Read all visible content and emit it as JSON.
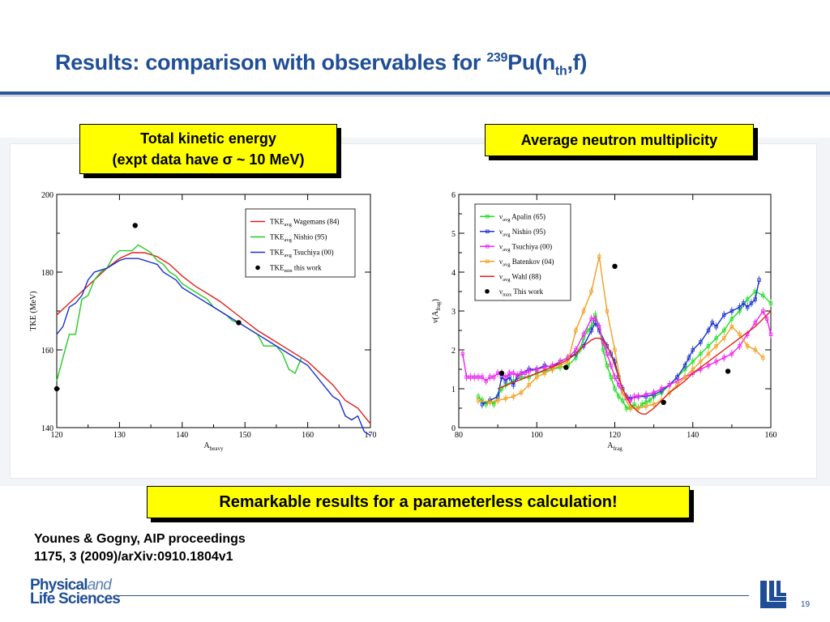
{
  "slide": {
    "title_main": "Results: comparison with observables for ",
    "title_sup": "239",
    "title_mid": "Pu(n",
    "title_sub": "th",
    "title_end": ",f)",
    "callout_left_line1": "Total kinetic energy",
    "callout_left_line2": "(expt data have σ ~ 10 MeV)",
    "callout_right": "Average neutron multiplicity",
    "callout_bottom": "Remarkable results for a parameterless calculation!",
    "reference_line1": "Younes & Gogny, AIP proceedings",
    "reference_line2": "1175, 3 (2009)/arXiv:0910.1804v1",
    "logo_physical": "Physical",
    "logo_and": "and",
    "logo_life": "Life Sciences",
    "page_number": "19",
    "accent_color": "#1f4e96",
    "callout_color": "#ffff00"
  },
  "chart_data": [
    {
      "type": "line",
      "xlabel": "A",
      "xlabel_sub": "heavy",
      "ylabel": "TKE (MeV)",
      "xlim": [
        120,
        170
      ],
      "ylim": [
        140,
        200
      ],
      "xticks": [
        120,
        130,
        140,
        150,
        160,
        170
      ],
      "yticks": [
        140,
        160,
        180,
        200
      ],
      "legend_position": "top-right",
      "series": [
        {
          "name": "TKE",
          "sub": "avg",
          "label": "Wagemans (84)",
          "color": "#e0201b",
          "style": "line",
          "x": [
            120,
            122,
            124,
            126,
            128,
            130,
            132,
            134,
            136,
            138,
            140,
            142,
            144,
            146,
            148,
            150,
            152,
            154,
            156,
            158,
            160,
            162,
            164,
            166,
            168,
            170
          ],
          "y": [
            169,
            172,
            175,
            178,
            181,
            183.5,
            185,
            185,
            184,
            182,
            179,
            176.5,
            174.5,
            172.5,
            170,
            167.5,
            165,
            163,
            161,
            159,
            157,
            154,
            151,
            147,
            145,
            141
          ]
        },
        {
          "name": "TKE",
          "sub": "avg",
          "label": "Nishio (95)",
          "color": "#22cc22",
          "style": "line",
          "x": [
            120,
            121,
            122,
            123,
            124,
            125,
            126,
            127,
            128,
            129,
            130,
            131,
            132,
            133,
            134,
            135,
            136,
            137,
            138,
            139,
            140,
            141,
            142,
            143,
            144,
            145,
            146,
            147,
            148,
            149,
            150,
            151,
            152,
            153,
            154,
            155,
            156,
            157,
            158,
            159
          ],
          "y": [
            152,
            158,
            164,
            164,
            173,
            174,
            178,
            180,
            181,
            184,
            185.5,
            185.5,
            185.5,
            187,
            186,
            185,
            183,
            182,
            180,
            179,
            177,
            176,
            175,
            174,
            173,
            171,
            170,
            169,
            167.5,
            167,
            166,
            165,
            164,
            161,
            161,
            161,
            159,
            155,
            154,
            158
          ]
        },
        {
          "name": "TKE",
          "sub": "avg",
          "label": "Tsuchiya (00)",
          "color": "#1a2fd0",
          "style": "line",
          "x": [
            120,
            121,
            122,
            123,
            124,
            125,
            126,
            127,
            128,
            129,
            130,
            131,
            132,
            133,
            134,
            135,
            136,
            137,
            138,
            139,
            140,
            142,
            144,
            146,
            148,
            150,
            152,
            154,
            156,
            158,
            160,
            162,
            164,
            165,
            166,
            167,
            168,
            169,
            170
          ],
          "y": [
            164,
            166,
            171,
            172,
            174,
            178,
            180,
            180.5,
            181,
            182,
            183,
            183.5,
            183.5,
            183.5,
            183,
            182.5,
            182,
            180,
            179,
            178,
            176,
            174,
            172,
            170,
            168,
            166,
            164,
            162,
            160,
            158,
            156,
            152,
            148,
            147,
            143,
            142,
            143,
            139,
            138
          ]
        },
        {
          "name": "TKE",
          "sub": "min",
          "label": "this work",
          "color": "#000000",
          "style": "dots",
          "x": [
            120,
            132.5,
            149
          ],
          "y": [
            150,
            192,
            167
          ]
        }
      ]
    },
    {
      "type": "line",
      "xlabel": "A",
      "xlabel_sub": "frag",
      "ylabel": "ν(A",
      "ylabel_sub": "frag",
      "ylabel_end": ")",
      "xlim": [
        80,
        160
      ],
      "ylim": [
        0,
        6
      ],
      "xticks": [
        80,
        100,
        120,
        140,
        160
      ],
      "yticks": [
        0,
        1,
        2,
        3,
        4,
        5,
        6
      ],
      "legend_position": "top-left",
      "series": [
        {
          "name": "ν",
          "sub": "avg",
          "label": "Apalin (65)",
          "color": "#22dd22",
          "style": "errline",
          "x": [
            85,
            86,
            87,
            88,
            89,
            90,
            91,
            92,
            94,
            96,
            98,
            100,
            102,
            104,
            106,
            108,
            110,
            111,
            112,
            113,
            114,
            115,
            116,
            117,
            118,
            119,
            120,
            121,
            122,
            123,
            124,
            125,
            126,
            127,
            128,
            129,
            130,
            132,
            134,
            136,
            138,
            140,
            142,
            144,
            146,
            148,
            150,
            152,
            154,
            156,
            158,
            160
          ],
          "y": [
            0.8,
            0.7,
            0.6,
            0.7,
            0.6,
            0.8,
            1.0,
            1.1,
            1.2,
            1.3,
            1.3,
            1.4,
            1.45,
            1.5,
            1.55,
            1.6,
            1.8,
            2.0,
            2.3,
            2.5,
            2.6,
            2.9,
            2.6,
            2.0,
            1.6,
            1.3,
            1.0,
            0.8,
            0.7,
            0.5,
            0.5,
            0.6,
            0.5,
            0.6,
            0.65,
            0.7,
            0.8,
            0.9,
            1.1,
            1.3,
            1.5,
            1.7,
            1.9,
            2.1,
            2.3,
            2.5,
            2.8,
            3.0,
            3.3,
            3.5,
            3.4,
            3.2
          ]
        },
        {
          "name": "ν",
          "sub": "avg",
          "label": "Nishio (95)",
          "color": "#1a2fd0",
          "style": "errline",
          "x": [
            86,
            88,
            90,
            91,
            92,
            93,
            94,
            95,
            96,
            98,
            100,
            102,
            104,
            106,
            108,
            110,
            112,
            114,
            115,
            116,
            118,
            119,
            120,
            121,
            122,
            123,
            124,
            126,
            128,
            130,
            132,
            134,
            136,
            138,
            139,
            140,
            142,
            144,
            145,
            146,
            148,
            150,
            152,
            153,
            154,
            155,
            156,
            157
          ],
          "y": [
            0.6,
            0.7,
            0.8,
            1.3,
            1.2,
            1.3,
            1.1,
            1.3,
            1.4,
            1.5,
            1.5,
            1.6,
            1.55,
            1.7,
            1.8,
            1.9,
            2.1,
            2.5,
            2.7,
            2.5,
            2.1,
            1.9,
            1.7,
            1.3,
            1.0,
            0.8,
            0.75,
            0.8,
            0.8,
            0.85,
            0.95,
            1.1,
            1.3,
            1.6,
            1.8,
            2.0,
            2.2,
            2.5,
            2.7,
            2.6,
            2.9,
            3.0,
            3.1,
            3.2,
            3.1,
            3.2,
            3.3,
            3.8
          ]
        },
        {
          "name": "ν",
          "sub": "avg",
          "label": "Tsuchiya (00)",
          "color": "#ee22ee",
          "style": "errline",
          "x": [
            81,
            82,
            83,
            84,
            85,
            86,
            87,
            88,
            89,
            90,
            91,
            92,
            93,
            94,
            95,
            96,
            97,
            98,
            100,
            102,
            104,
            106,
            108,
            110,
            112,
            114,
            115,
            116,
            117,
            118,
            119,
            120,
            121,
            122,
            123,
            124,
            125,
            126,
            128,
            130,
            132,
            134,
            136,
            138,
            140,
            142,
            144,
            146,
            148,
            150,
            152,
            154,
            156,
            158,
            159,
            160
          ],
          "y": [
            1.9,
            1.3,
            1.3,
            1.3,
            1.3,
            1.3,
            1.2,
            1.3,
            1.3,
            1.4,
            1.4,
            1.3,
            1.4,
            1.4,
            1.35,
            1.4,
            1.4,
            1.45,
            1.5,
            1.55,
            1.6,
            1.7,
            1.8,
            2.0,
            2.4,
            2.8,
            2.8,
            2.6,
            2.2,
            1.9,
            1.6,
            1.3,
            1.1,
            0.9,
            0.75,
            0.7,
            0.8,
            0.8,
            0.85,
            0.9,
            1.0,
            1.1,
            1.2,
            1.3,
            1.4,
            1.5,
            1.6,
            1.7,
            1.8,
            1.9,
            2.1,
            2.4,
            2.7,
            3.0,
            2.8,
            2.4
          ]
        },
        {
          "name": "ν",
          "sub": "avg",
          "label": "Batenkov (04)",
          "color": "#f0a020",
          "style": "errline",
          "x": [
            85,
            88,
            90,
            92,
            94,
            96,
            98,
            100,
            102,
            104,
            106,
            108,
            110,
            112,
            114,
            116,
            118,
            120,
            122,
            124,
            126,
            128,
            130,
            132,
            134,
            136,
            138,
            140,
            142,
            144,
            146,
            148,
            150,
            152,
            154,
            156,
            158
          ],
          "y": [
            0.7,
            0.65,
            0.7,
            0.75,
            0.8,
            0.9,
            1.1,
            1.3,
            1.4,
            1.5,
            1.6,
            1.7,
            2.5,
            3.0,
            3.5,
            4.4,
            3.0,
            2.0,
            0.9,
            0.5,
            0.5,
            0.55,
            0.6,
            0.7,
            0.9,
            1.1,
            1.3,
            1.5,
            1.7,
            1.9,
            2.1,
            2.3,
            2.6,
            2.4,
            2.1,
            2.0,
            1.8
          ]
        },
        {
          "name": "ν",
          "sub": "avg",
          "label": "Wahl (88)",
          "color": "#e0201b",
          "style": "line",
          "x": [
            90,
            95,
            100,
            105,
            108,
            110,
            112,
            114,
            115,
            116,
            117,
            118,
            119,
            120,
            121,
            122,
            123,
            124,
            125,
            126,
            127,
            128,
            130,
            132,
            134,
            136,
            138,
            140,
            142,
            144,
            146,
            148,
            150,
            152,
            154,
            156,
            158,
            160
          ],
          "y": [
            1.0,
            1.2,
            1.4,
            1.6,
            1.75,
            1.9,
            2.1,
            2.25,
            2.3,
            2.3,
            2.25,
            2.1,
            1.9,
            1.6,
            1.3,
            1.0,
            0.8,
            0.6,
            0.5,
            0.4,
            0.35,
            0.35,
            0.5,
            0.7,
            0.9,
            1.05,
            1.2,
            1.4,
            1.55,
            1.7,
            1.85,
            2.0,
            2.15,
            2.3,
            2.45,
            2.6,
            2.8,
            3.0
          ]
        },
        {
          "name": "ν",
          "sub": "max",
          "label": "This work",
          "color": "#000000",
          "style": "dots",
          "x": [
            91,
            107.5,
            120,
            132.5,
            149
          ],
          "y": [
            1.4,
            1.55,
            4.15,
            0.65,
            1.45
          ]
        }
      ]
    }
  ]
}
